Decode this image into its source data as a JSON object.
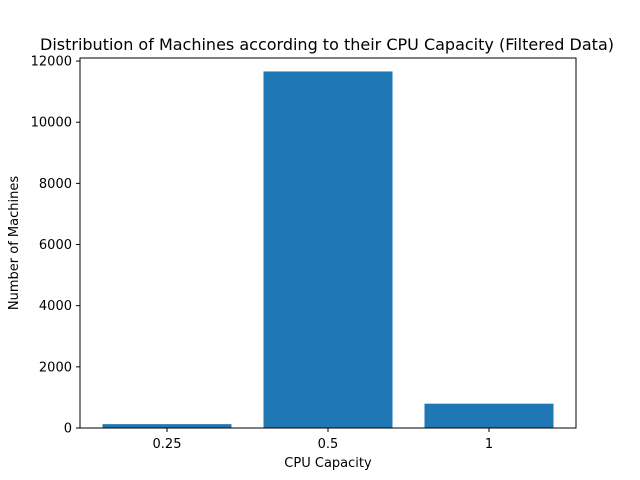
{
  "chart_data": {
    "type": "bar",
    "title": "Distribution of Machines according to their CPU Capacity (Filtered Data)",
    "xlabel": "CPU Capacity",
    "ylabel": "Number of Machines",
    "categories": [
      "0.25",
      "0.5",
      "1"
    ],
    "values": [
      126,
      11660,
      795
    ],
    "ylim": [
      0,
      12000
    ],
    "yticks": [
      0,
      2000,
      4000,
      6000,
      8000,
      10000,
      12000
    ],
    "grid": false,
    "legend": "none",
    "bar_color": "#1f77b4"
  }
}
